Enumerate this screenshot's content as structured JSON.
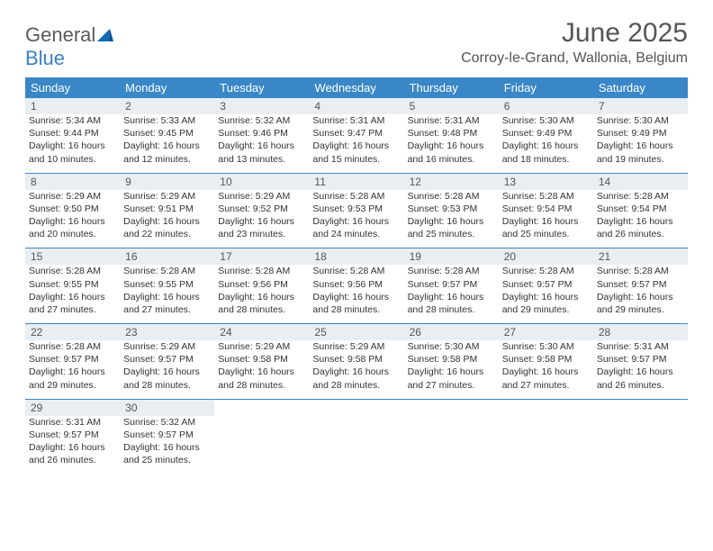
{
  "brand": {
    "general": "General",
    "blue": "Blue"
  },
  "title": "June 2025",
  "location": "Corroy-le-Grand, Wallonia, Belgium",
  "colors": {
    "header_bg": "#3a87c7",
    "header_text": "#ffffff",
    "daynum_bg": "#e9eef2",
    "text": "#333333",
    "rule": "#3a87c7",
    "logo_gray": "#5a5a5a",
    "logo_blue": "#3a7fc4"
  },
  "day_headers": [
    "Sunday",
    "Monday",
    "Tuesday",
    "Wednesday",
    "Thursday",
    "Friday",
    "Saturday"
  ],
  "weeks": [
    [
      {
        "n": "1",
        "sr": "5:34 AM",
        "ss": "9:44 PM",
        "dl": "16 hours and 10 minutes."
      },
      {
        "n": "2",
        "sr": "5:33 AM",
        "ss": "9:45 PM",
        "dl": "16 hours and 12 minutes."
      },
      {
        "n": "3",
        "sr": "5:32 AM",
        "ss": "9:46 PM",
        "dl": "16 hours and 13 minutes."
      },
      {
        "n": "4",
        "sr": "5:31 AM",
        "ss": "9:47 PM",
        "dl": "16 hours and 15 minutes."
      },
      {
        "n": "5",
        "sr": "5:31 AM",
        "ss": "9:48 PM",
        "dl": "16 hours and 16 minutes."
      },
      {
        "n": "6",
        "sr": "5:30 AM",
        "ss": "9:49 PM",
        "dl": "16 hours and 18 minutes."
      },
      {
        "n": "7",
        "sr": "5:30 AM",
        "ss": "9:49 PM",
        "dl": "16 hours and 19 minutes."
      }
    ],
    [
      {
        "n": "8",
        "sr": "5:29 AM",
        "ss": "9:50 PM",
        "dl": "16 hours and 20 minutes."
      },
      {
        "n": "9",
        "sr": "5:29 AM",
        "ss": "9:51 PM",
        "dl": "16 hours and 22 minutes."
      },
      {
        "n": "10",
        "sr": "5:29 AM",
        "ss": "9:52 PM",
        "dl": "16 hours and 23 minutes."
      },
      {
        "n": "11",
        "sr": "5:28 AM",
        "ss": "9:53 PM",
        "dl": "16 hours and 24 minutes."
      },
      {
        "n": "12",
        "sr": "5:28 AM",
        "ss": "9:53 PM",
        "dl": "16 hours and 25 minutes."
      },
      {
        "n": "13",
        "sr": "5:28 AM",
        "ss": "9:54 PM",
        "dl": "16 hours and 25 minutes."
      },
      {
        "n": "14",
        "sr": "5:28 AM",
        "ss": "9:54 PM",
        "dl": "16 hours and 26 minutes."
      }
    ],
    [
      {
        "n": "15",
        "sr": "5:28 AM",
        "ss": "9:55 PM",
        "dl": "16 hours and 27 minutes."
      },
      {
        "n": "16",
        "sr": "5:28 AM",
        "ss": "9:55 PM",
        "dl": "16 hours and 27 minutes."
      },
      {
        "n": "17",
        "sr": "5:28 AM",
        "ss": "9:56 PM",
        "dl": "16 hours and 28 minutes."
      },
      {
        "n": "18",
        "sr": "5:28 AM",
        "ss": "9:56 PM",
        "dl": "16 hours and 28 minutes."
      },
      {
        "n": "19",
        "sr": "5:28 AM",
        "ss": "9:57 PM",
        "dl": "16 hours and 28 minutes."
      },
      {
        "n": "20",
        "sr": "5:28 AM",
        "ss": "9:57 PM",
        "dl": "16 hours and 29 minutes."
      },
      {
        "n": "21",
        "sr": "5:28 AM",
        "ss": "9:57 PM",
        "dl": "16 hours and 29 minutes."
      }
    ],
    [
      {
        "n": "22",
        "sr": "5:28 AM",
        "ss": "9:57 PM",
        "dl": "16 hours and 29 minutes."
      },
      {
        "n": "23",
        "sr": "5:29 AM",
        "ss": "9:57 PM",
        "dl": "16 hours and 28 minutes."
      },
      {
        "n": "24",
        "sr": "5:29 AM",
        "ss": "9:58 PM",
        "dl": "16 hours and 28 minutes."
      },
      {
        "n": "25",
        "sr": "5:29 AM",
        "ss": "9:58 PM",
        "dl": "16 hours and 28 minutes."
      },
      {
        "n": "26",
        "sr": "5:30 AM",
        "ss": "9:58 PM",
        "dl": "16 hours and 27 minutes."
      },
      {
        "n": "27",
        "sr": "5:30 AM",
        "ss": "9:58 PM",
        "dl": "16 hours and 27 minutes."
      },
      {
        "n": "28",
        "sr": "5:31 AM",
        "ss": "9:57 PM",
        "dl": "16 hours and 26 minutes."
      }
    ],
    [
      {
        "n": "29",
        "sr": "5:31 AM",
        "ss": "9:57 PM",
        "dl": "16 hours and 26 minutes."
      },
      {
        "n": "30",
        "sr": "5:32 AM",
        "ss": "9:57 PM",
        "dl": "16 hours and 25 minutes."
      },
      null,
      null,
      null,
      null,
      null
    ]
  ],
  "labels": {
    "sunrise": "Sunrise: ",
    "sunset": "Sunset: ",
    "daylight": "Daylight: "
  }
}
